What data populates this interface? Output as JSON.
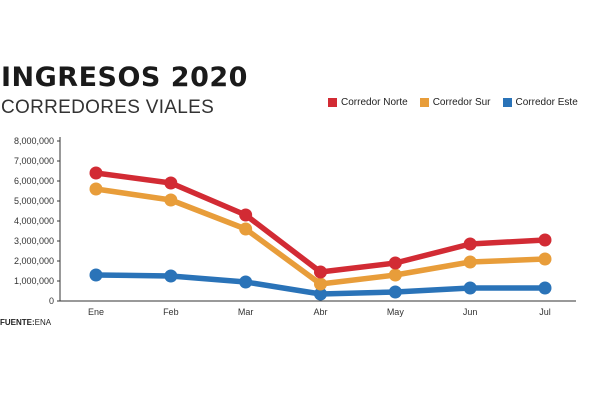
{
  "header": {
    "title": "INGRESOS 2020",
    "subtitle": "CORREDORES VIALES"
  },
  "source": {
    "label": "FUENTE:",
    "value": "ENA"
  },
  "chart_data": {
    "type": "line",
    "title": "INGRESOS 2020",
    "subtitle": "CORREDORES VIALES",
    "categories": [
      "Ene",
      "Feb",
      "Mar",
      "Abr",
      "May",
      "Jun",
      "Jul"
    ],
    "ylim": [
      0,
      8000000
    ],
    "yticks": [
      0,
      1000000,
      2000000,
      3000000,
      4000000,
      5000000,
      6000000,
      7000000,
      8000000
    ],
    "ytick_labels": [
      "0",
      "1,000,000",
      "2,000,000",
      "3,000,000",
      "4,000,000",
      "5,000,000",
      "6,000,000",
      "7,000,000",
      "8,000,000"
    ],
    "grid": false,
    "legend_position": "top-right",
    "series": [
      {
        "name": "Corredor Norte",
        "color": "#d22b34",
        "values": [
          6400000,
          5900000,
          4300000,
          1450000,
          1900000,
          2850000,
          3050000
        ]
      },
      {
        "name": "Corredor Sur",
        "color": "#e89d3a",
        "values": [
          5600000,
          5050000,
          3600000,
          850000,
          1300000,
          1950000,
          2100000
        ]
      },
      {
        "name": "Corredor Este",
        "color": "#2a73b8",
        "values": [
          1300000,
          1250000,
          950000,
          350000,
          450000,
          650000,
          650000
        ]
      }
    ]
  }
}
